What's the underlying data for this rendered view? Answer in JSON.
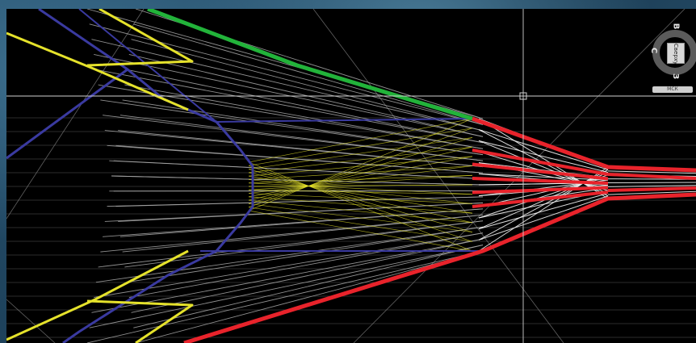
{
  "viewcube": {
    "face_label": "Сверху",
    "north": "В",
    "west": "С",
    "south": "З",
    "wcs_label": "МСК"
  },
  "colors": {
    "background": "#000000",
    "grid": "#6f6f6f",
    "crosshair": "#d0d0d0",
    "outline_blue": "#3a3aa0",
    "outline_yellow": "#e5e22b",
    "outline_green": "#22b33a",
    "outline_red": "#e8232b",
    "mesh_gray": "#a8a8a8",
    "mesh_white": "#f2f2f2"
  }
}
